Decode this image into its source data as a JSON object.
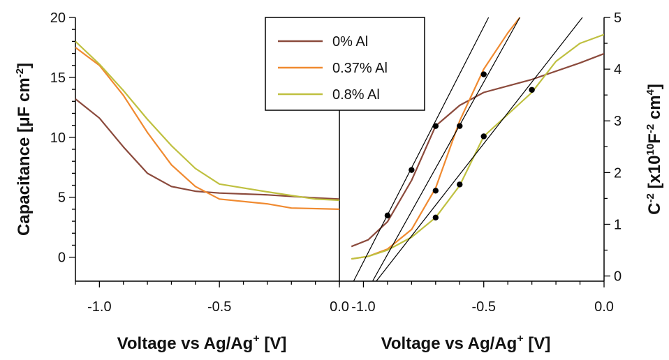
{
  "chart_data": [
    {
      "type": "line",
      "panel": "left",
      "xlabel": "Voltage vs Ag/Ag",
      "xlabel_sup": "+",
      "xlabel_unit": " [V]",
      "ylabel_parts": [
        "Capacitance [",
        "μ",
        "F cm",
        "-2",
        "]"
      ],
      "xlim": [
        -1.1,
        0.0
      ],
      "ylim": [
        -2,
        20
      ],
      "xticks": [
        -1.0,
        -0.5,
        0.0
      ],
      "xtick_labels": [
        "-1.0",
        "-0.5",
        "0.0"
      ],
      "yticks": [
        0,
        5,
        10,
        15,
        20
      ],
      "ytick_labels": [
        "0",
        "5",
        "10",
        "15",
        "20"
      ],
      "series": [
        {
          "name": "0% Al",
          "color": "#8B4A3C",
          "x": [
            -1.1,
            -1.0,
            -0.9,
            -0.8,
            -0.7,
            -0.6,
            -0.5,
            -0.3,
            -0.1,
            0.0
          ],
          "y": [
            13.2,
            11.6,
            9.2,
            7.0,
            5.9,
            5.5,
            5.35,
            5.2,
            4.95,
            4.85
          ]
        },
        {
          "name": "0.37% Al",
          "color": "#F08A30",
          "x": [
            -1.1,
            -1.0,
            -0.9,
            -0.8,
            -0.7,
            -0.6,
            -0.5,
            -0.3,
            -0.2,
            0.0
          ],
          "y": [
            17.5,
            16.0,
            13.5,
            10.4,
            7.7,
            5.9,
            4.85,
            4.45,
            4.1,
            4.0
          ]
        },
        {
          "name": "0.8% Al",
          "color": "#BFC040",
          "x": [
            -1.1,
            -1.0,
            -0.9,
            -0.8,
            -0.7,
            -0.6,
            -0.5,
            -0.3,
            -0.1,
            0.0
          ],
          "y": [
            18.0,
            16.1,
            13.9,
            11.5,
            9.3,
            7.4,
            6.1,
            5.45,
            4.85,
            4.75
          ]
        }
      ],
      "legend": {
        "placement": "top-center",
        "entries": [
          "0% Al",
          "0.37% Al",
          "0.8% Al"
        ]
      }
    },
    {
      "type": "line",
      "panel": "right",
      "xlabel": "Voltage vs Ag/Ag",
      "xlabel_sup": "+",
      "xlabel_unit": " [V]",
      "ylabel_parts": [
        "C",
        "-2",
        " [x10",
        "10",
        "F",
        "-2",
        " cm",
        "4",
        "]"
      ],
      "xlim": [
        -1.1,
        0.0
      ],
      "ylim": [
        -0.1,
        5
      ],
      "xticks": [
        -1.0,
        -0.5,
        0.0
      ],
      "xtick_labels": [
        "-1.0",
        "-0.5",
        "0.0"
      ],
      "yticks": [
        0,
        1,
        2,
        3,
        4,
        5
      ],
      "ytick_labels": [
        "0",
        "1",
        "2",
        "3",
        "4",
        "5"
      ],
      "series": [
        {
          "name": "0% Al",
          "color": "#8B4A3C",
          "x": [
            -1.05,
            -0.98,
            -0.9,
            -0.8,
            -0.7,
            -0.6,
            -0.5,
            -0.3,
            -0.1,
            0.0
          ],
          "y": [
            0.57,
            0.7,
            1.05,
            1.85,
            2.9,
            3.3,
            3.55,
            3.8,
            4.12,
            4.3
          ]
        },
        {
          "name": "0.37% Al",
          "color": "#F08A30",
          "x": [
            -1.05,
            -0.98,
            -0.9,
            -0.8,
            -0.7,
            -0.6,
            -0.5,
            -0.4,
            -0.35
          ],
          "y": [
            0.33,
            0.38,
            0.52,
            0.9,
            1.7,
            3.0,
            4.0,
            4.7,
            5.0
          ]
        },
        {
          "name": "0.8% Al",
          "color": "#BFC040",
          "x": [
            -1.05,
            -0.98,
            -0.9,
            -0.8,
            -0.7,
            -0.6,
            -0.5,
            -0.3,
            -0.2,
            -0.1,
            0.0
          ],
          "y": [
            0.33,
            0.38,
            0.5,
            0.75,
            1.13,
            1.75,
            2.7,
            3.55,
            4.15,
            4.5,
            4.67
          ]
        }
      ],
      "markers": [
        {
          "x": -0.9,
          "y": 1.17
        },
        {
          "x": -0.8,
          "y": 2.05
        },
        {
          "x": -0.7,
          "y": 2.9
        },
        {
          "x": -0.7,
          "y": 1.65
        },
        {
          "x": -0.6,
          "y": 2.9
        },
        {
          "x": -0.5,
          "y": 3.9
        },
        {
          "x": -0.7,
          "y": 1.13
        },
        {
          "x": -0.6,
          "y": 1.77
        },
        {
          "x": -0.5,
          "y": 2.7
        },
        {
          "x": -0.3,
          "y": 3.6
        }
      ],
      "fit_lines": [
        {
          "x0": -1.03,
          "y0": 0.0,
          "x1": -0.48,
          "y1": 5.0
        },
        {
          "x0": -0.95,
          "y0": 0.0,
          "x1": -0.35,
          "y1": 5.0
        },
        {
          "x0": -0.93,
          "y0": 0.0,
          "x1": -0.09,
          "y1": 5.0
        }
      ]
    }
  ]
}
